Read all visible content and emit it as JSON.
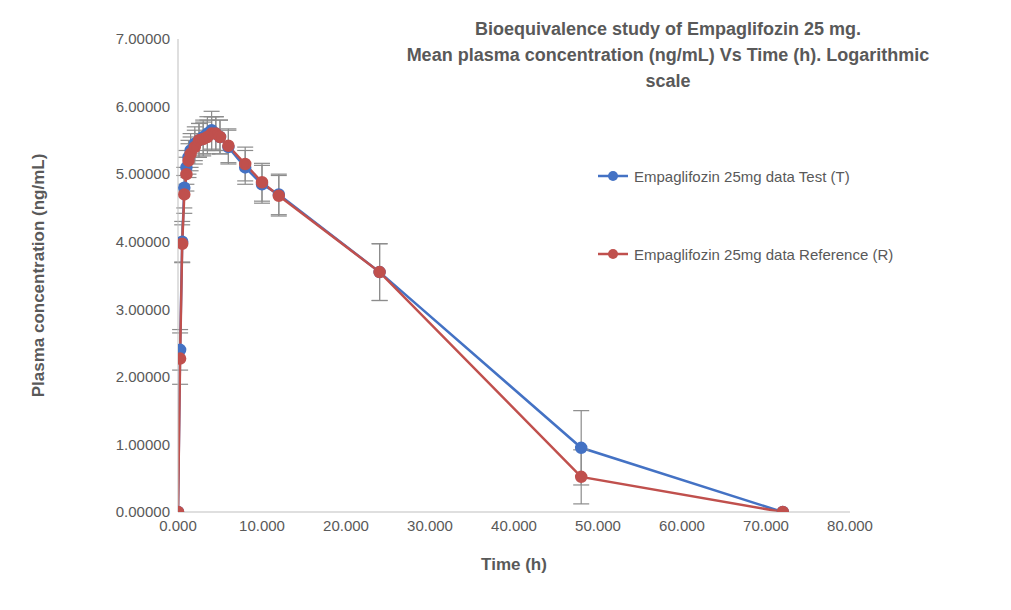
{
  "chart_data": {
    "type": "line",
    "title": [
      "Bioequivalence study of Empaglifozin 25 mg.",
      "Mean plasma concentration (ng/mL) Vs Time (h). Logarithmic scale"
    ],
    "x_label": "Time (h)",
    "y_label": "Plasma concentration (ng/mL)",
    "x": [
      0,
      0.25,
      0.5,
      0.75,
      1,
      1.25,
      1.5,
      2,
      2.5,
      3,
      3.5,
      4,
      4.5,
      5,
      6,
      8,
      10,
      12,
      24,
      48,
      72
    ],
    "series": [
      {
        "name": "Empaglifozin 25mg data Test (T)",
        "color": "#4472c4",
        "marker": "circle",
        "values": [
          0,
          2.4,
          4.0,
          4.8,
          5.1,
          5.25,
          5.35,
          5.45,
          5.5,
          5.55,
          5.6,
          5.65,
          5.6,
          5.55,
          5.4,
          5.1,
          4.85,
          4.7,
          3.55,
          0.95,
          0
        ],
        "errors": [
          0,
          0.3,
          0.3,
          0.3,
          0.25,
          0.25,
          0.25,
          0.25,
          0.25,
          0.25,
          0.25,
          0.28,
          0.25,
          0.25,
          0.25,
          0.25,
          0.28,
          0.3,
          0.42,
          0.55,
          0
        ]
      },
      {
        "name": "Empaglifozin 25mg data Reference (R)",
        "color": "#c0504d",
        "marker": "circle",
        "values": [
          0,
          2.27,
          3.97,
          4.7,
          5.0,
          5.2,
          5.3,
          5.4,
          5.5,
          5.52,
          5.55,
          5.6,
          5.6,
          5.55,
          5.42,
          5.15,
          4.88,
          4.68,
          3.55,
          0.52,
          0
        ],
        "errors": [
          0,
          0.38,
          0.28,
          0.28,
          0.25,
          0.25,
          0.25,
          0.25,
          0.25,
          0.25,
          0.25,
          0.25,
          0.25,
          0.25,
          0.25,
          0.25,
          0.28,
          0.3,
          0.42,
          0.4,
          0
        ]
      }
    ],
    "xlim": [
      0,
      80
    ],
    "xticks": [
      {
        "value": 0,
        "label": "0.000"
      },
      {
        "value": 10,
        "label": "10.000"
      },
      {
        "value": 20,
        "label": "20.000"
      },
      {
        "value": 30,
        "label": "30.000"
      },
      {
        "value": 40,
        "label": "40.000"
      },
      {
        "value": 50,
        "label": "50.000"
      },
      {
        "value": 60,
        "label": "60.000"
      },
      {
        "value": 70,
        "label": "70.000"
      },
      {
        "value": 80,
        "label": "80.000"
      }
    ],
    "ylim": [
      0,
      7
    ],
    "yticks": [
      {
        "value": 0,
        "label": "0.00000"
      },
      {
        "value": 1,
        "label": "1.00000"
      },
      {
        "value": 2,
        "label": "2.00000"
      },
      {
        "value": 3,
        "label": "3.00000"
      },
      {
        "value": 4,
        "label": "4.00000"
      },
      {
        "value": 5,
        "label": "5.00000"
      },
      {
        "value": 6,
        "label": "6.00000"
      },
      {
        "value": 7,
        "label": "7.00000"
      }
    ],
    "grid": false,
    "legend": "right"
  }
}
